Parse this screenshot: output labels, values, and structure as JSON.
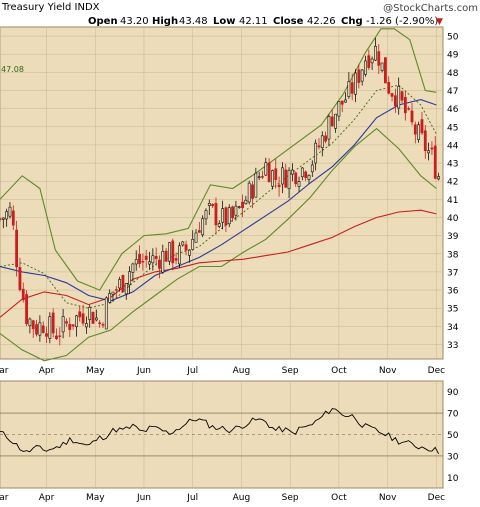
{
  "header": {
    "title": "Treasury Yield INDX",
    "watermark": "@StockCharts.com",
    "open_label": "Open",
    "open_value": "43.20",
    "high_label": "High",
    "high_value": "43.48",
    "low_label": "Low",
    "low_value": "42.11",
    "close_label": "Close",
    "close_value": "42.26",
    "chg_label": "Chg",
    "chg_value": "-1.26 (-2.90%)",
    "chg_arrow": "▼"
  },
  "left_annotation": "47.08",
  "colors": {
    "panel_bg": "#ecdcb9",
    "upper_band": "#5d8a2a",
    "ma_50": "#2a3a9a",
    "ma_200": "#c81e1e",
    "dotted_mid": "#3a6a1a",
    "candle_down": "#c81e1e",
    "candle_up": "#111111",
    "grid": "#c8b78e",
    "rsi_line": "#000000",
    "chg_negative": "#c81e1e"
  },
  "chart_data": [
    {
      "type": "candlestick",
      "panel": "price",
      "y_axis_ticks": [
        33,
        34,
        35,
        36,
        37,
        38,
        39,
        40,
        41,
        42,
        43,
        44,
        45,
        46,
        47,
        48,
        49,
        50
      ],
      "ylim": [
        32.2,
        50.5
      ],
      "x_labels": [
        "Mar",
        "Apr",
        "May",
        "Jun",
        "Jul",
        "Aug",
        "Sep",
        "Oct",
        "Nov",
        "Dec"
      ],
      "x_label_positions": [
        0,
        21,
        43,
        65,
        87,
        109,
        131,
        153,
        175,
        197
      ],
      "x_range": [
        0,
        200
      ],
      "overlays": [
        {
          "name": "Bollinger Bands",
          "lines": [
            "upper",
            "lower",
            "middle"
          ]
        },
        {
          "name": "50-day MA",
          "line": "ma50"
        },
        {
          "name": "200-day MA",
          "line": "ma200"
        }
      ],
      "series": [
        {
          "name": "close",
          "points": [
            [
              0,
              39.9
            ],
            [
              5,
              40.4
            ],
            [
              8,
              37.2
            ],
            [
              12,
              34.6
            ],
            [
              16,
              33.9
            ],
            [
              20,
              34.2
            ],
            [
              25,
              33.6
            ],
            [
              30,
              34.1
            ],
            [
              35,
              34.5
            ],
            [
              40,
              34.9
            ],
            [
              45,
              34.2
            ],
            [
              50,
              35.8
            ],
            [
              55,
              36.4
            ],
            [
              60,
              37.4
            ],
            [
              65,
              37.6
            ],
            [
              70,
              37.7
            ],
            [
              75,
              38.0
            ],
            [
              80,
              37.9
            ],
            [
              85,
              38.3
            ],
            [
              90,
              39.7
            ],
            [
              95,
              40.3
            ],
            [
              100,
              39.9
            ],
            [
              105,
              39.9
            ],
            [
              110,
              40.8
            ],
            [
              115,
              41.9
            ],
            [
              120,
              42.9
            ],
            [
              125,
              42.1
            ],
            [
              130,
              42.4
            ],
            [
              135,
              42.6
            ],
            [
              140,
              42.9
            ],
            [
              145,
              44.2
            ],
            [
              150,
              45.6
            ],
            [
              155,
              46.4
            ],
            [
              160,
              47.3
            ],
            [
              165,
              48.8
            ],
            [
              170,
              49.3
            ],
            [
              175,
              47.3
            ],
            [
              180,
              46.6
            ],
            [
              185,
              45.2
            ],
            [
              190,
              44.3
            ],
            [
              195,
              43.3
            ],
            [
              198,
              42.3
            ]
          ]
        },
        {
          "name": "ma50",
          "points": [
            [
              0,
              37.3
            ],
            [
              10,
              37.0
            ],
            [
              20,
              36.8
            ],
            [
              30,
              36.4
            ],
            [
              40,
              35.7
            ],
            [
              50,
              35.4
            ],
            [
              60,
              35.9
            ],
            [
              70,
              36.8
            ],
            [
              80,
              37.3
            ],
            [
              90,
              37.8
            ],
            [
              100,
              38.5
            ],
            [
              110,
              39.3
            ],
            [
              120,
              40.1
            ],
            [
              130,
              40.9
            ],
            [
              140,
              41.9
            ],
            [
              150,
              42.8
            ],
            [
              160,
              44.0
            ],
            [
              170,
              45.5
            ],
            [
              180,
              46.2
            ],
            [
              190,
              46.5
            ],
            [
              197,
              46.2
            ]
          ]
        },
        {
          "name": "ma200",
          "points": [
            [
              0,
              34.5
            ],
            [
              10,
              35.5
            ],
            [
              20,
              35.9
            ],
            [
              30,
              35.7
            ],
            [
              40,
              35.2
            ],
            [
              50,
              35.6
            ],
            [
              60,
              36.6
            ],
            [
              70,
              37.0
            ],
            [
              80,
              37.2
            ],
            [
              90,
              37.5
            ],
            [
              100,
              37.6
            ],
            [
              110,
              37.7
            ],
            [
              120,
              37.9
            ],
            [
              130,
              38.1
            ],
            [
              140,
              38.5
            ],
            [
              150,
              38.9
            ],
            [
              160,
              39.5
            ],
            [
              170,
              40.0
            ],
            [
              180,
              40.3
            ],
            [
              190,
              40.4
            ],
            [
              197,
              40.2
            ]
          ]
        },
        {
          "name": "upper",
          "points": [
            [
              0,
              41.0
            ],
            [
              10,
              42.3
            ],
            [
              18,
              41.6
            ],
            [
              25,
              38.2
            ],
            [
              35,
              36.5
            ],
            [
              45,
              36.0
            ],
            [
              55,
              38.0
            ],
            [
              65,
              39.0
            ],
            [
              75,
              39.1
            ],
            [
              85,
              39.4
            ],
            [
              95,
              41.8
            ],
            [
              105,
              41.6
            ],
            [
              115,
              42.4
            ],
            [
              125,
              43.3
            ],
            [
              135,
              44.2
            ],
            [
              145,
              45.1
            ],
            [
              155,
              46.8
            ],
            [
              165,
              49.1
            ],
            [
              172,
              50.4
            ],
            [
              178,
              50.4
            ],
            [
              185,
              49.8
            ],
            [
              192,
              47.0
            ],
            [
              197,
              46.9
            ]
          ]
        },
        {
          "name": "lower",
          "points": [
            [
              0,
              33.6
            ],
            [
              10,
              32.7
            ],
            [
              20,
              32.1
            ],
            [
              30,
              32.4
            ],
            [
              40,
              33.4
            ],
            [
              50,
              33.8
            ],
            [
              60,
              34.8
            ],
            [
              70,
              35.7
            ],
            [
              80,
              36.6
            ],
            [
              90,
              37.3
            ],
            [
              100,
              37.3
            ],
            [
              110,
              38.1
            ],
            [
              120,
              38.8
            ],
            [
              130,
              39.9
            ],
            [
              140,
              41.1
            ],
            [
              150,
              42.6
            ],
            [
              160,
              43.9
            ],
            [
              170,
              44.9
            ],
            [
              180,
              43.8
            ],
            [
              190,
              42.3
            ],
            [
              197,
              41.6
            ]
          ]
        },
        {
          "name": "middle",
          "points": [
            [
              0,
              37.3
            ],
            [
              10,
              37.5
            ],
            [
              20,
              36.9
            ],
            [
              30,
              35.3
            ],
            [
              40,
              35.0
            ],
            [
              50,
              35.3
            ],
            [
              60,
              36.4
            ],
            [
              70,
              37.4
            ],
            [
              80,
              38.0
            ],
            [
              90,
              38.4
            ],
            [
              100,
              39.4
            ],
            [
              110,
              40.3
            ],
            [
              120,
              41.3
            ],
            [
              130,
              42.3
            ],
            [
              140,
              43.2
            ],
            [
              150,
              44.1
            ],
            [
              160,
              45.4
            ],
            [
              170,
              47.0
            ],
            [
              180,
              47.3
            ],
            [
              190,
              46.2
            ],
            [
              197,
              44.6
            ]
          ]
        }
      ]
    },
    {
      "type": "line",
      "panel": "rsi",
      "y_axis_ticks": [
        10,
        30,
        50,
        70,
        90
      ],
      "ylim": [
        0,
        100
      ],
      "reference_lines": [
        30,
        50,
        70
      ],
      "x_labels": [
        "Mar",
        "Apr",
        "May",
        "Jun",
        "Jul",
        "Aug",
        "Sep",
        "Oct",
        "Nov",
        "Dec"
      ],
      "series": [
        {
          "name": "RSI",
          "points": [
            [
              0,
              52
            ],
            [
              4,
              47
            ],
            [
              8,
              39
            ],
            [
              12,
              33
            ],
            [
              16,
              38
            ],
            [
              20,
              35
            ],
            [
              24,
              37
            ],
            [
              28,
              40
            ],
            [
              32,
              46
            ],
            [
              36,
              42
            ],
            [
              40,
              39
            ],
            [
              44,
              46
            ],
            [
              48,
              49
            ],
            [
              52,
              55
            ],
            [
              56,
              54
            ],
            [
              60,
              58
            ],
            [
              64,
              52
            ],
            [
              68,
              56
            ],
            [
              72,
              55
            ],
            [
              76,
              51
            ],
            [
              80,
              55
            ],
            [
              84,
              60
            ],
            [
              88,
              65
            ],
            [
              92,
              62
            ],
            [
              96,
              57
            ],
            [
              100,
              56
            ],
            [
              104,
              54
            ],
            [
              108,
              57
            ],
            [
              112,
              61
            ],
            [
              116,
              64
            ],
            [
              120,
              62
            ],
            [
              124,
              54
            ],
            [
              128,
              55
            ],
            [
              132,
              51
            ],
            [
              136,
              56
            ],
            [
              140,
              58
            ],
            [
              144,
              64
            ],
            [
              148,
              71
            ],
            [
              150,
              75
            ],
            [
              152,
              72
            ],
            [
              156,
              68
            ],
            [
              160,
              67
            ],
            [
              164,
              58
            ],
            [
              168,
              55
            ],
            [
              172,
              52
            ],
            [
              176,
              48
            ],
            [
              180,
              44
            ],
            [
              184,
              42
            ],
            [
              188,
              39
            ],
            [
              192,
              38
            ],
            [
              196,
              36
            ],
            [
              198,
              34
            ]
          ]
        }
      ]
    }
  ]
}
